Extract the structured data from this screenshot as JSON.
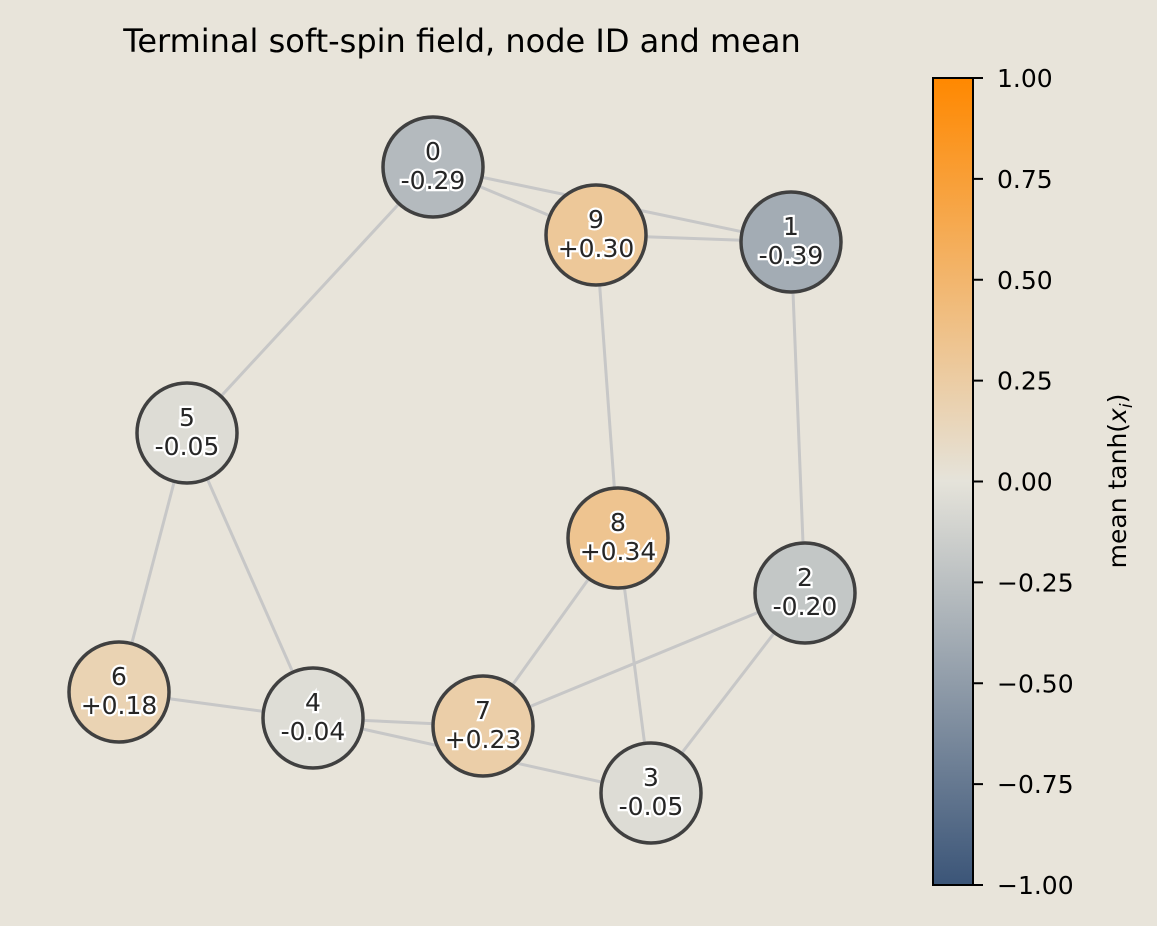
{
  "title": "Terminal soft-spin field, node ID and mean",
  "graph": {
    "nodes": [
      {
        "id": "0",
        "value": "-0.29",
        "mean": -0.29
      },
      {
        "id": "1",
        "value": "-0.39",
        "mean": -0.39
      },
      {
        "id": "2",
        "value": "-0.20",
        "mean": -0.2
      },
      {
        "id": "3",
        "value": "-0.05",
        "mean": -0.05
      },
      {
        "id": "4",
        "value": "-0.04",
        "mean": -0.04
      },
      {
        "id": "5",
        "value": "-0.05",
        "mean": -0.05
      },
      {
        "id": "6",
        "value": "+0.18",
        "mean": 0.18
      },
      {
        "id": "7",
        "value": "+0.23",
        "mean": 0.23
      },
      {
        "id": "8",
        "value": "+0.34",
        "mean": 0.34
      },
      {
        "id": "9",
        "value": "+0.30",
        "mean": 0.3
      }
    ],
    "edges": [
      [
        "0",
        "9"
      ],
      [
        "0",
        "1"
      ],
      [
        "0",
        "5"
      ],
      [
        "9",
        "1"
      ],
      [
        "9",
        "8"
      ],
      [
        "1",
        "2"
      ],
      [
        "5",
        "6"
      ],
      [
        "5",
        "4"
      ],
      [
        "6",
        "4"
      ],
      [
        "4",
        "7"
      ],
      [
        "4",
        "3"
      ],
      [
        "7",
        "8"
      ],
      [
        "7",
        "2"
      ],
      [
        "8",
        "3"
      ],
      [
        "2",
        "3"
      ]
    ]
  },
  "colorbar": {
    "label": "mean tanh(",
    "label_var": "x",
    "label_sub": "i",
    "label_end": ")",
    "min": -1.0,
    "max": 1.0,
    "ticks": [
      "1.00",
      "0.75",
      "0.50",
      "0.25",
      "0.00",
      "−0.25",
      "−0.50",
      "−0.75",
      "−1.00"
    ],
    "colors": {
      "negative": "#3b5578",
      "zero": "#e5e3da",
      "positive": "#ff8800"
    }
  }
}
